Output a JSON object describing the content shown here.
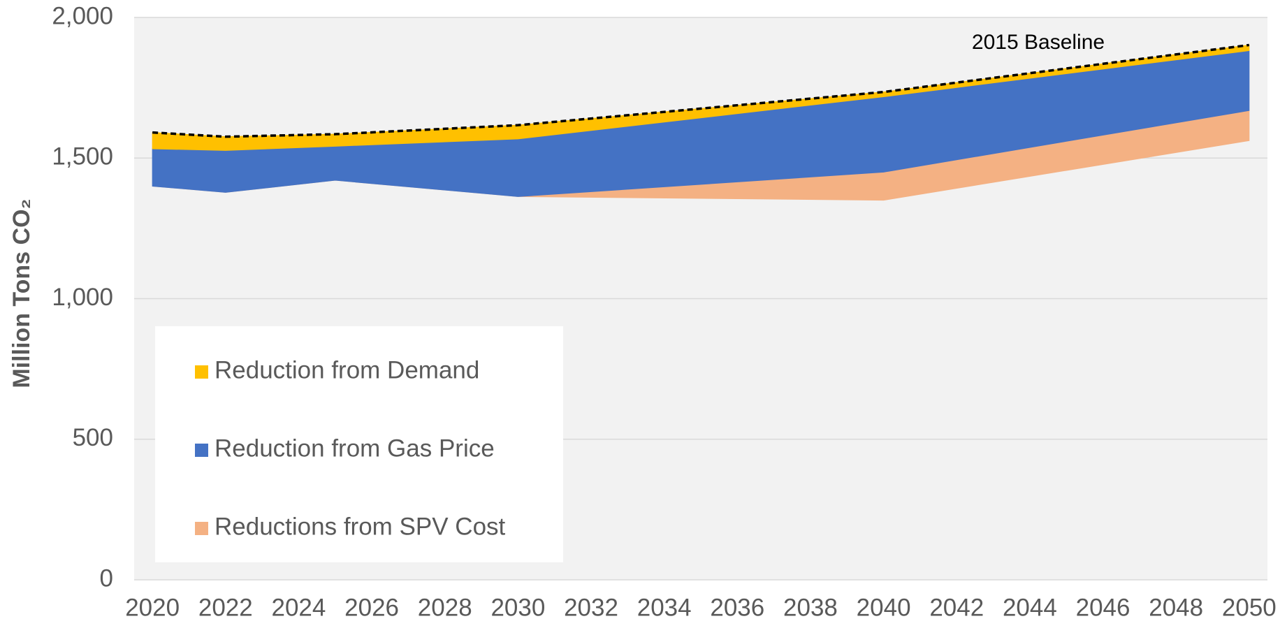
{
  "chart_data": {
    "type": "stacked_area",
    "y_label": "Million Tons CO₂",
    "x": [
      2020,
      2022,
      2025,
      2030,
      2040,
      2050
    ],
    "xlim": [
      2019.5,
      2050.5
    ],
    "xticks": [
      2020,
      2022,
      2024,
      2026,
      2028,
      2030,
      2032,
      2034,
      2036,
      2038,
      2040,
      2042,
      2044,
      2046,
      2048,
      2050
    ],
    "ylim": [
      0,
      2000
    ],
    "yticks": [
      0,
      500,
      {
        "value": 1000,
        "label": "1,000"
      },
      {
        "value": 1500,
        "label": "1,500"
      },
      {
        "value": 2000,
        "label": "2,000"
      }
    ],
    "grid": true,
    "legend": "lower left",
    "series": [
      {
        "name": "Reduction from Demand",
        "color": "#ffc000",
        "values": [
          58,
          49,
          43,
          49,
          17,
          20
        ]
      },
      {
        "name": "Reduction from Gas Price",
        "color": "#4472c4",
        "values": [
          133,
          149,
          121,
          205,
          268,
          213
        ]
      },
      {
        "name": "Reductions from SPV Cost",
        "color": "#f4b183",
        "values": [
          0,
          0,
          0,
          0,
          100,
          107
        ]
      },
      {
        "color": "none",
        "values": [
          1400,
          1378,
          1421,
          1363,
          1350,
          1562
        ]
      }
    ],
    "annotation": {
      "text": "2015 Baseline",
      "line": "dashed",
      "color": "#000000"
    }
  }
}
